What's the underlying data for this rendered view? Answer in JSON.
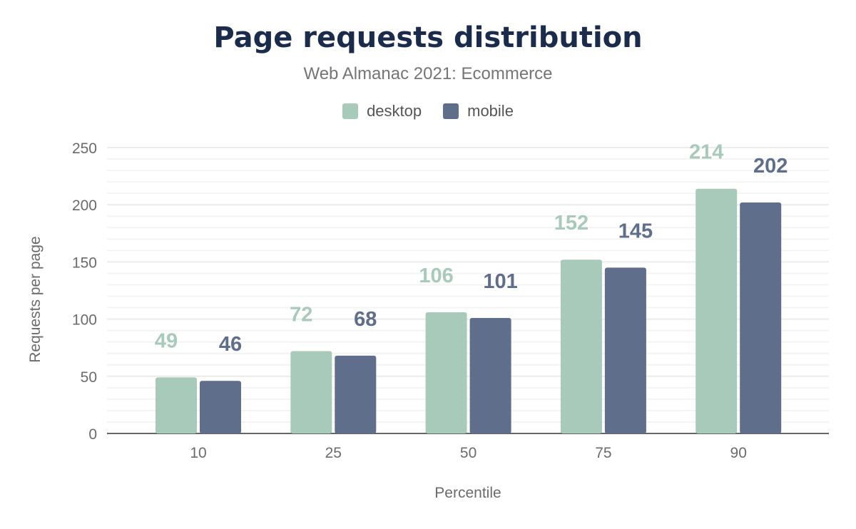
{
  "chart_data": {
    "type": "bar",
    "title": "Page requests distribution",
    "subtitle": "Web Almanac 2021: Ecommerce",
    "xlabel": "Percentile",
    "ylabel": "Requests per page",
    "categories": [
      "10",
      "25",
      "50",
      "75",
      "90"
    ],
    "series": [
      {
        "name": "desktop",
        "color": "#a8cabb",
        "values": [
          49,
          72,
          106,
          152,
          214
        ]
      },
      {
        "name": "mobile",
        "color": "#5f6e8b",
        "values": [
          46,
          68,
          101,
          145,
          202
        ]
      }
    ],
    "ylim": [
      0,
      250
    ],
    "yticks": [
      "0",
      "50",
      "100",
      "150",
      "200",
      "250"
    ],
    "grid": true,
    "legend": "top"
  }
}
